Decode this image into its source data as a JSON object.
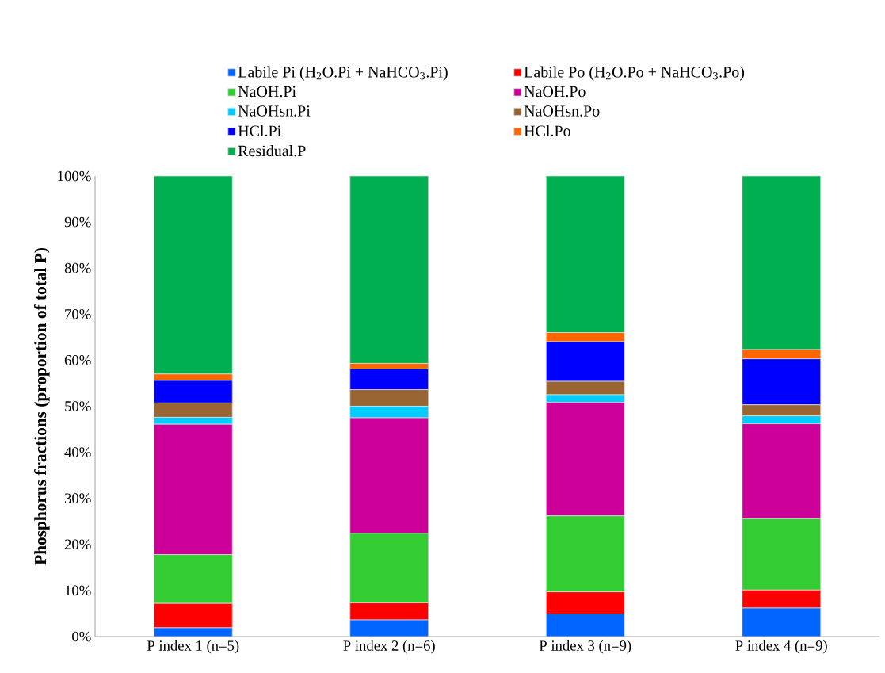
{
  "chart_data": {
    "type": "bar",
    "stacked": true,
    "ylabel": "Phosphorus fractions (proportion of total P)",
    "categories": [
      "P index 1 (n=5)",
      "P index 2 (n=6)",
      "P index 3 (n=9)",
      "P index 4 (n=9)"
    ],
    "series": [
      {
        "name": "Labile Pi (H$_{2}$O.Pi + NaHCO$_{3}$.Pi)",
        "color": "#0066ff",
        "values": [
          1.9,
          3.6,
          4.9,
          6.2
        ]
      },
      {
        "name": "Labile Po (H$_{2}$O.Po + NaHCO$_{3}$.Po)",
        "color": "#ff0000",
        "values": [
          5.3,
          3.7,
          4.8,
          3.9
        ]
      },
      {
        "name": "NaOH.Pi",
        "color": "#33cc33",
        "values": [
          10.6,
          15.1,
          16.5,
          15.5
        ]
      },
      {
        "name": "NaOH.Po",
        "color": "#cc0099",
        "values": [
          28.3,
          25.1,
          24.6,
          20.6
        ]
      },
      {
        "name": "NaOHsn.Pi",
        "color": "#00ccff",
        "values": [
          1.5,
          2.5,
          1.7,
          1.7
        ]
      },
      {
        "name": "NaOHsn.Po",
        "color": "#996633",
        "values": [
          3.1,
          3.6,
          2.9,
          2.4
        ]
      },
      {
        "name": "HCl.Pi",
        "color": "#0000ff",
        "values": [
          4.9,
          4.5,
          8.6,
          10.0
        ]
      },
      {
        "name": "HCl.Po",
        "color": "#ff6600",
        "values": [
          1.4,
          1.2,
          2.0,
          2.0
        ]
      },
      {
        "name": "Residual.P",
        "color": "#00b050",
        "values": [
          43.0,
          40.7,
          34.0,
          37.7
        ]
      }
    ],
    "ylim": [
      0,
      100
    ],
    "yticks": [
      {
        "value": 0,
        "label": "0%"
      },
      {
        "value": 10,
        "label": "10%"
      },
      {
        "value": 20,
        "label": "20%"
      },
      {
        "value": 30,
        "label": "30%"
      },
      {
        "value": 40,
        "label": "40%"
      },
      {
        "value": 50,
        "label": "50%"
      },
      {
        "value": 60,
        "label": "60%"
      },
      {
        "value": 70,
        "label": "70%"
      },
      {
        "value": 80,
        "label": "80%"
      },
      {
        "value": 90,
        "label": "90%"
      },
      {
        "value": 100,
        "label": "100%"
      }
    ],
    "grid": false,
    "legend": "top"
  }
}
